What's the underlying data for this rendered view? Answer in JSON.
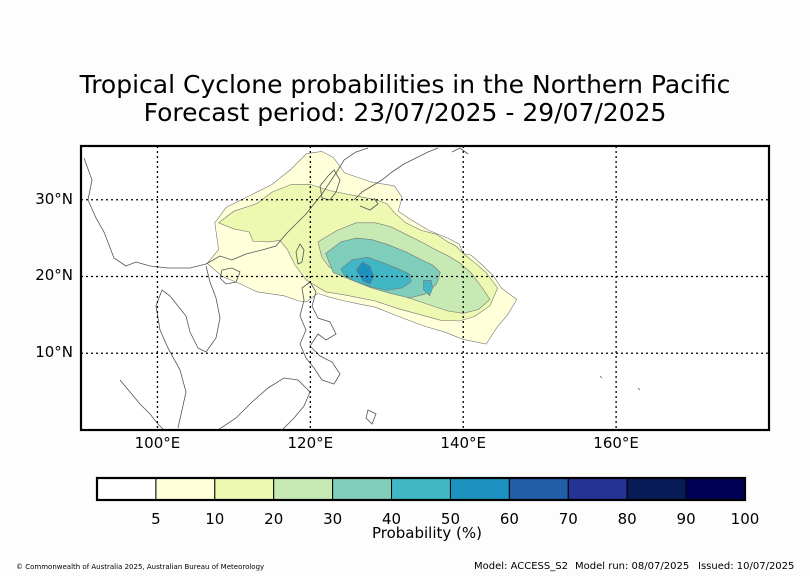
{
  "title": {
    "line1": "Tropical Cyclone probabilities in the Northern Pacific",
    "line2": "Forecast period: 23/07/2025 - 29/07/2025"
  },
  "map": {
    "lon_range": [
      90,
      180
    ],
    "lat_range": [
      0,
      37
    ],
    "lat_ticks": [
      {
        "value": 30,
        "label": "30°N"
      },
      {
        "value": 20,
        "label": "20°N"
      },
      {
        "value": 10,
        "label": "10°N"
      }
    ],
    "lon_ticks": [
      {
        "value": 100,
        "label": "100°E"
      },
      {
        "value": 120,
        "label": "120°E"
      },
      {
        "value": 140,
        "label": "140°E"
      },
      {
        "value": 160,
        "label": "160°E"
      }
    ],
    "gridlines": true,
    "probability_field": [
      {
        "level": 5,
        "color": "#ffffd9",
        "outline": [
          [
            106.5,
            21.7
          ],
          [
            108,
            23.5
          ],
          [
            107.5,
            27
          ],
          [
            109,
            29
          ],
          [
            112,
            30.5
          ],
          [
            115,
            32
          ],
          [
            117.5,
            34
          ],
          [
            119.5,
            36
          ],
          [
            121.5,
            36.3
          ],
          [
            123,
            35.5
          ],
          [
            124.5,
            33.5
          ],
          [
            128,
            32.3
          ],
          [
            131,
            31.8
          ],
          [
            132,
            30.3
          ],
          [
            131.5,
            28.5
          ],
          [
            133,
            27.5
          ],
          [
            135.5,
            26
          ],
          [
            138,
            25
          ],
          [
            139.5,
            24.2
          ],
          [
            140,
            23
          ],
          [
            141,
            22.8
          ],
          [
            142.5,
            21.5
          ],
          [
            144,
            20
          ],
          [
            145,
            18.5
          ],
          [
            147,
            17
          ],
          [
            145.8,
            15
          ],
          [
            144.5,
            13.5
          ],
          [
            143,
            11.2
          ],
          [
            140,
            11.8
          ],
          [
            137.5,
            12.8
          ],
          [
            135,
            13.5
          ],
          [
            132,
            14.6
          ],
          [
            128.5,
            16
          ],
          [
            126,
            16.5
          ],
          [
            124.5,
            16.8
          ],
          [
            122.5,
            17.3
          ],
          [
            121,
            17.8
          ],
          [
            119.5,
            16.7
          ],
          [
            118.5,
            16.8
          ],
          [
            116.5,
            17.5
          ],
          [
            113,
            18
          ],
          [
            110.5,
            19.2
          ],
          [
            108.5,
            20
          ],
          [
            106.5,
            21.7
          ]
        ]
      },
      {
        "level": 10,
        "color": "#edf8b1",
        "outline": [
          [
            108,
            27
          ],
          [
            110,
            28.5
          ],
          [
            113,
            29.5
          ],
          [
            115,
            31
          ],
          [
            117.5,
            32
          ],
          [
            120,
            32
          ],
          [
            122.5,
            31.2
          ],
          [
            126,
            30.5
          ],
          [
            128.5,
            30
          ],
          [
            130,
            29.5
          ],
          [
            131,
            28.3
          ],
          [
            132.5,
            27
          ],
          [
            134.5,
            26
          ],
          [
            136.5,
            25.5
          ],
          [
            138,
            24.5
          ],
          [
            139,
            24
          ],
          [
            140,
            23
          ],
          [
            141.5,
            21.8
          ],
          [
            143,
            20.5
          ],
          [
            144.5,
            18.5
          ],
          [
            143.5,
            16.2
          ],
          [
            141.5,
            14.8
          ],
          [
            139.5,
            14.2
          ],
          [
            137,
            14.3
          ],
          [
            134.5,
            15
          ],
          [
            131.5,
            15.8
          ],
          [
            128.5,
            16.8
          ],
          [
            126,
            17.3
          ],
          [
            124.5,
            17.6
          ],
          [
            122,
            18
          ],
          [
            119.5,
            19.5
          ],
          [
            118,
            21.5
          ],
          [
            117,
            23.5
          ],
          [
            116,
            24.7
          ],
          [
            114.5,
            24.5
          ],
          [
            112.5,
            24.6
          ],
          [
            112,
            25.8
          ],
          [
            110,
            26.2
          ],
          [
            108,
            27
          ]
        ]
      },
      {
        "level": 20,
        "color": "#c7e9b4",
        "outline": [
          [
            121,
            24.5
          ],
          [
            123.5,
            26
          ],
          [
            126,
            27
          ],
          [
            128.5,
            27
          ],
          [
            130.5,
            26.5
          ],
          [
            132.5,
            25.5
          ],
          [
            134.5,
            24.5
          ],
          [
            136,
            23.7
          ],
          [
            138,
            22.7
          ],
          [
            139.5,
            21.8
          ],
          [
            141,
            20.5
          ],
          [
            142.5,
            18.5
          ],
          [
            143.5,
            17
          ],
          [
            142,
            15.7
          ],
          [
            140,
            15.2
          ],
          [
            138,
            15.5
          ],
          [
            135,
            16.5
          ],
          [
            132,
            17.5
          ],
          [
            129,
            18.8
          ],
          [
            126.5,
            19.8
          ],
          [
            124.5,
            20.5
          ],
          [
            122.5,
            21.2
          ],
          [
            121.5,
            22.5
          ],
          [
            121,
            24.5
          ]
        ]
      },
      {
        "level": 30,
        "color": "#7fcdbb",
        "outline": [
          [
            122,
            23
          ],
          [
            124,
            24.5
          ],
          [
            126,
            25
          ],
          [
            128,
            24.8
          ],
          [
            130,
            24.2
          ],
          [
            132.5,
            23.2
          ],
          [
            134.5,
            22.2
          ],
          [
            136,
            21.5
          ],
          [
            137,
            20.5
          ],
          [
            136.5,
            19
          ],
          [
            135,
            17.7
          ],
          [
            133,
            17.2
          ],
          [
            130.5,
            17.8
          ],
          [
            128,
            18.5
          ],
          [
            125.5,
            19.5
          ],
          [
            123,
            20.5
          ],
          [
            122,
            23
          ]
        ]
      },
      {
        "level": 40,
        "color": "#41b6c4",
        "outline": [
          [
            124,
            21
          ],
          [
            125.5,
            22.2
          ],
          [
            127.5,
            22.5
          ],
          [
            129.5,
            21.8
          ],
          [
            131.5,
            21
          ],
          [
            133,
            20.3
          ],
          [
            133.2,
            19.3
          ],
          [
            132,
            18.5
          ],
          [
            130,
            18.2
          ],
          [
            128,
            18.6
          ],
          [
            126,
            19.3
          ],
          [
            124.5,
            20.1
          ],
          [
            124,
            21
          ]
        ]
      },
      {
        "level": 40,
        "color": "#41b6c4",
        "outline": [
          [
            134.8,
            19.5
          ],
          [
            135.8,
            19.5
          ],
          [
            136,
            18.5
          ],
          [
            135.6,
            17.5
          ],
          [
            134.8,
            18.3
          ],
          [
            134.8,
            19.5
          ]
        ]
      },
      {
        "level": 50,
        "color": "#1d91c0",
        "outline": [
          [
            126,
            20.8
          ],
          [
            126.8,
            21.9
          ],
          [
            127.8,
            21.3
          ],
          [
            128.3,
            20
          ],
          [
            127.8,
            19
          ],
          [
            126.9,
            19.4
          ],
          [
            126,
            20.8
          ]
        ]
      }
    ],
    "colors": {
      "coast": "#555555",
      "contour_line": "#777777",
      "grid": "#000000"
    }
  },
  "colorbar": {
    "title": "Probability (%)",
    "tick_labels": [
      "5",
      "10",
      "20",
      "30",
      "40",
      "50",
      "60",
      "70",
      "80",
      "90",
      "100"
    ],
    "colors": [
      "#ffffff",
      "#ffffd9",
      "#edf8b1",
      "#c7e9b4",
      "#7fcdbb",
      "#41b6c4",
      "#1d91c0",
      "#225ea8",
      "#253494",
      "#081d58",
      "#000057"
    ]
  },
  "footer": {
    "copyright": "© Commonwealth of Australia 2025, Australian Bureau of Meteorology",
    "model": "Model: ACCESS_S2",
    "model_run": "Model run: 08/07/2025",
    "issued": "Issued: 10/07/2025"
  }
}
